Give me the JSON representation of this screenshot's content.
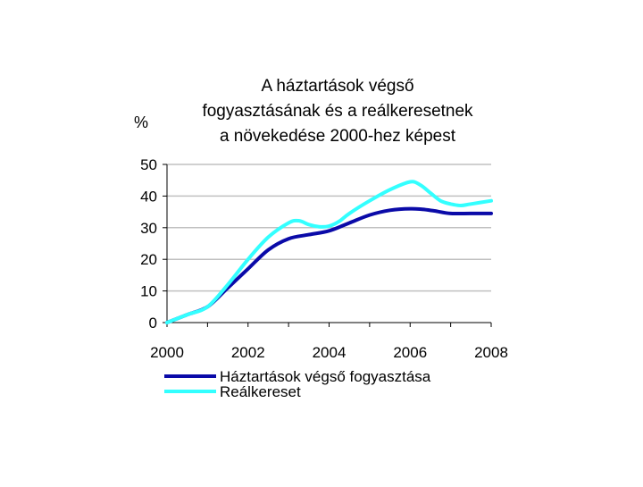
{
  "chart_data": {
    "type": "line",
    "title": [
      "A háztartások végső",
      "fogyasztásának és a reálkeresetnek",
      "a növekedése 2000-hez képest"
    ],
    "ylabel": "%",
    "xlabel": "",
    "xlim": [
      2000,
      2008
    ],
    "ylim": [
      0,
      50
    ],
    "x_ticks": [
      "2000",
      "2002",
      "2004",
      "2006",
      "2008"
    ],
    "y_ticks": [
      "0",
      "10",
      "20",
      "30",
      "40",
      "50"
    ],
    "grid": "horizontal",
    "legend_position": "bottom",
    "series": [
      {
        "name": "Háztartások végső fogyasztása",
        "color": "#0a0aa8",
        "x": [
          2000,
          2000.5,
          2001,
          2001.5,
          2002,
          2002.5,
          2003,
          2003.5,
          2004,
          2004.5,
          2005,
          2005.5,
          2006,
          2006.3,
          2006.6,
          2007,
          2007.5,
          2008
        ],
        "y": [
          0,
          2.5,
          5,
          11,
          17,
          23,
          26.5,
          27.8,
          29,
          31.5,
          34,
          35.5,
          36,
          35.8,
          35.3,
          34.5,
          34.5,
          34.5
        ]
      },
      {
        "name": "Reálkereset",
        "color": "#33ffff",
        "x": [
          2000,
          2000.5,
          2001,
          2001.5,
          2002,
          2002.5,
          2003,
          2003.25,
          2003.5,
          2003.75,
          2004,
          2004.25,
          2004.5,
          2005,
          2005.5,
          2006,
          2006.25,
          2006.5,
          2006.75,
          2007,
          2007.25,
          2007.5,
          2008
        ],
        "y": [
          0,
          2.5,
          5,
          12,
          20,
          27,
          31.5,
          32.2,
          31,
          30.3,
          30.5,
          32,
          34.5,
          38.5,
          42,
          44.5,
          43.5,
          41,
          38.5,
          37.5,
          37,
          37.5,
          38.5
        ]
      }
    ]
  }
}
